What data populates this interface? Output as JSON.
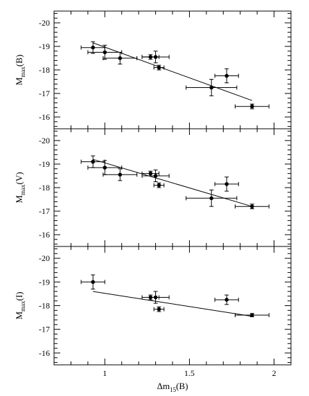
{
  "chart_data": [
    {
      "type": "scatter",
      "ylabel": "M",
      "ylabel_sub": "max",
      "ylabel_suffix": "(B)",
      "ylim": [
        -15.5,
        -20.5
      ],
      "yticks": [
        -20,
        -19,
        -18,
        -17,
        -16
      ],
      "ytick_labels": [
        "-20",
        "-19",
        "-18",
        "-17",
        "-16"
      ],
      "y_inverted": true,
      "points": [
        {
          "x": 0.93,
          "y": -18.95,
          "xerr": 0.07,
          "yerr": 0.25
        },
        {
          "x": 1.0,
          "y": -18.75,
          "xerr": 0.1,
          "yerr": 0.3
        },
        {
          "x": 1.09,
          "y": -18.5,
          "xerr": 0.1,
          "yerr": 0.25
        },
        {
          "x": 1.27,
          "y": -18.55,
          "xerr": 0.05,
          "yerr": 0.1
        },
        {
          "x": 1.3,
          "y": -18.55,
          "xerr": 0.08,
          "yerr": 0.25
        },
        {
          "x": 1.32,
          "y": -18.1,
          "xerr": 0.03,
          "yerr": 0.1
        },
        {
          "x": 1.63,
          "y": -17.25,
          "xerr": 0.15,
          "yerr": 0.35
        },
        {
          "x": 1.72,
          "y": -17.75,
          "xerr": 0.07,
          "yerr": 0.3
        },
        {
          "x": 1.87,
          "y": -16.45,
          "xerr": 0.1,
          "yerr": 0.1
        }
      ],
      "fit": {
        "x": [
          0.93,
          1.87
        ],
        "y": [
          -19.15,
          -16.7
        ]
      }
    },
    {
      "type": "scatter",
      "ylabel": "M",
      "ylabel_sub": "max",
      "ylabel_suffix": "(V)",
      "ylim": [
        -15.5,
        -20.5
      ],
      "yticks": [
        -20,
        -19,
        -18,
        -17,
        -16
      ],
      "ytick_labels": [
        "-20",
        "-19",
        "-18",
        "-17",
        "-16"
      ],
      "y_inverted": true,
      "points": [
        {
          "x": 0.93,
          "y": -19.1,
          "xerr": 0.07,
          "yerr": 0.25
        },
        {
          "x": 1.0,
          "y": -18.85,
          "xerr": 0.1,
          "yerr": 0.3
        },
        {
          "x": 1.09,
          "y": -18.55,
          "xerr": 0.1,
          "yerr": 0.25
        },
        {
          "x": 1.27,
          "y": -18.6,
          "xerr": 0.05,
          "yerr": 0.1
        },
        {
          "x": 1.3,
          "y": -18.5,
          "xerr": 0.08,
          "yerr": 0.25
        },
        {
          "x": 1.32,
          "y": -18.1,
          "xerr": 0.03,
          "yerr": 0.1
        },
        {
          "x": 1.63,
          "y": -17.55,
          "xerr": 0.15,
          "yerr": 0.35
        },
        {
          "x": 1.72,
          "y": -18.15,
          "xerr": 0.07,
          "yerr": 0.3
        },
        {
          "x": 1.87,
          "y": -17.2,
          "xerr": 0.1,
          "yerr": 0.1
        }
      ],
      "fit": {
        "x": [
          0.93,
          1.87
        ],
        "y": [
          -19.2,
          -17.2
        ]
      }
    },
    {
      "type": "scatter",
      "ylabel": "M",
      "ylabel_sub": "max",
      "ylabel_suffix": "(I)",
      "xlabel": "Δm",
      "xlabel_sub": "15",
      "xlabel_suffix": "(B)",
      "ylim": [
        -15.5,
        -20.5
      ],
      "yticks": [
        -20,
        -19,
        -18,
        -17,
        -16
      ],
      "ytick_labels": [
        "-20",
        "-19",
        "-18",
        "-17",
        "-16"
      ],
      "y_inverted": true,
      "points": [
        {
          "x": 0.93,
          "y": -19.0,
          "xerr": 0.07,
          "yerr": 0.3
        },
        {
          "x": 1.27,
          "y": -18.35,
          "xerr": 0.05,
          "yerr": 0.1
        },
        {
          "x": 1.3,
          "y": -18.35,
          "xerr": 0.08,
          "yerr": 0.25
        },
        {
          "x": 1.32,
          "y": -17.85,
          "xerr": 0.03,
          "yerr": 0.1
        },
        {
          "x": 1.72,
          "y": -18.25,
          "xerr": 0.07,
          "yerr": 0.2
        },
        {
          "x": 1.87,
          "y": -17.6,
          "xerr": 0.1,
          "yerr": 0.07
        }
      ],
      "fit": {
        "x": [
          0.93,
          1.87
        ],
        "y": [
          -18.6,
          -17.55
        ]
      }
    }
  ],
  "x_axis": {
    "xlim": [
      0.7,
      2.1
    ],
    "xticks": [
      1,
      1.5,
      2
    ],
    "xtick_labels": [
      "1",
      "1.5",
      "2"
    ],
    "minor_step": 0.1
  }
}
